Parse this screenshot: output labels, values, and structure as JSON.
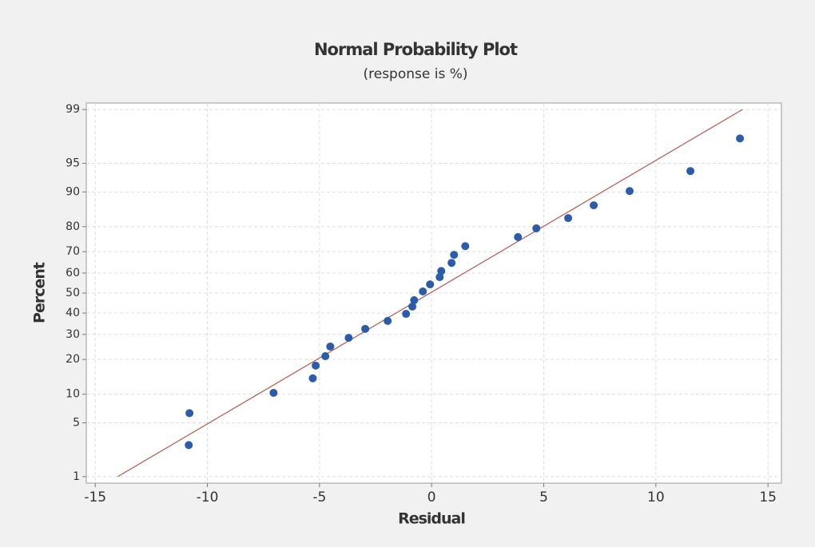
{
  "chart_data": {
    "type": "scatter",
    "title": "Normal Probability Plot",
    "subtitle": "(response is %)",
    "x_label": "Residual",
    "y_label": "Percent",
    "y_scale": "normal probability",
    "grid": true,
    "xlim": [
      -15.4,
      15.6
    ],
    "xticks": [
      -15,
      -10,
      -5,
      0,
      5,
      10,
      15
    ],
    "ylim": [
      0.8,
      99.2
    ],
    "yticks": [
      1,
      5,
      10,
      20,
      30,
      40,
      50,
      60,
      70,
      80,
      90,
      95,
      99
    ],
    "series": [
      {
        "name": "Residual",
        "color": "#2a5caa",
        "x": [
          -10.83,
          -10.8,
          -7.05,
          -5.3,
          -5.17,
          -4.74,
          -4.52,
          -3.7,
          -2.96,
          -1.96,
          -1.14,
          -0.86,
          -0.78,
          -0.39,
          -0.07,
          0.36,
          0.43,
          0.89,
          1.0,
          1.5,
          3.85,
          4.67,
          6.09,
          7.23,
          8.83,
          11.54,
          13.75
        ],
        "values": [
          2.7,
          6.4,
          10.3,
          14,
          17.9,
          21.2,
          24.9,
          28.5,
          32.5,
          36.2,
          39.6,
          43.2,
          46.4,
          50.8,
          54.4,
          58,
          61,
          64.9,
          68.6,
          72.4,
          76.1,
          79.4,
          82.9,
          86.7,
          90.2,
          93.9,
          97.5
        ]
      }
    ],
    "fit_line": {
      "color": "#b5574a",
      "x": [
        -14.0,
        13.86
      ],
      "y": [
        1,
        99
      ]
    }
  }
}
